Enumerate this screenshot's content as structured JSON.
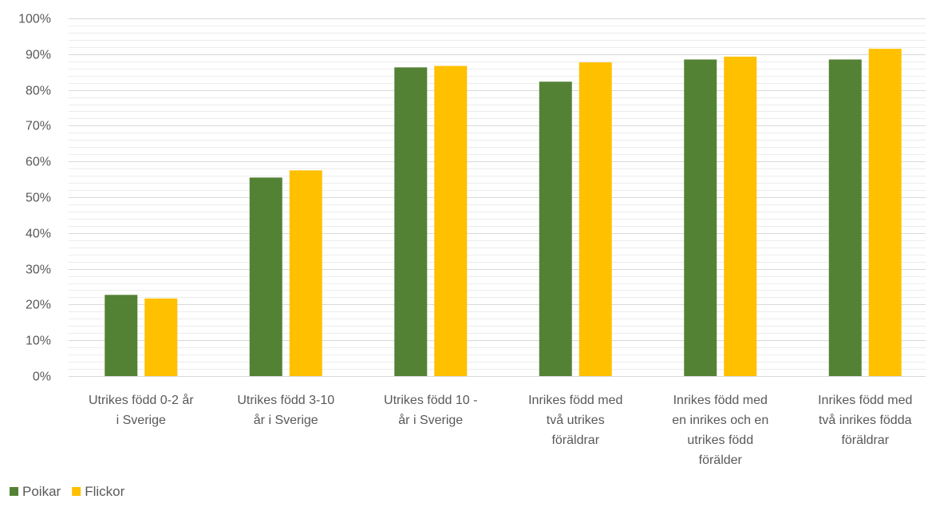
{
  "chart_data": {
    "type": "bar",
    "title": "",
    "xlabel": "",
    "ylabel": "",
    "ylim": [
      0,
      1
    ],
    "ytick_step": 0.1,
    "yticks": [
      "0%",
      "10%",
      "20%",
      "30%",
      "40%",
      "50%",
      "60%",
      "70%",
      "80%",
      "90%",
      "100%"
    ],
    "minor_gridlines": true,
    "grid": true,
    "legend_position": "bottom-left",
    "categories": [
      [
        "Utrikes född 0-2 år",
        "i Sverige"
      ],
      [
        "Utrikes född 3-10",
        "år i Sverige"
      ],
      [
        "Utrikes född 10 -",
        "år i Sverige"
      ],
      [
        "Inrikes född med",
        "två utrikes",
        "föräldrar"
      ],
      [
        "Inrikes född med",
        "en inrikes och en",
        "utrikes född",
        "förälder"
      ],
      [
        "Inrikes född med",
        "två inrikes födda",
        "föräldrar"
      ]
    ],
    "series": [
      {
        "name": "Poikar",
        "color": "#548235",
        "values": [
          0.227,
          0.555,
          0.863,
          0.823,
          0.885,
          0.885
        ]
      },
      {
        "name": "Flickor",
        "color": "#ffc000",
        "values": [
          0.217,
          0.575,
          0.867,
          0.877,
          0.893,
          0.915
        ]
      }
    ]
  }
}
